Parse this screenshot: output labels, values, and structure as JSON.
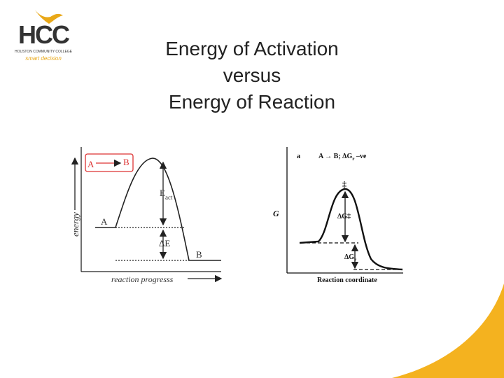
{
  "logo": {
    "letters": "HCC",
    "name": "HOUSTON COMMUNITY COLLEGE",
    "tagline": "smart decision"
  },
  "title": [
    "Energy of Activation",
    "versus",
    "Energy of Reaction"
  ],
  "left_diagram": {
    "box_start": "A",
    "box_end": "B",
    "reactant": "A",
    "product": "B",
    "activation": {
      "symbol": "E",
      "subscript": "act"
    },
    "reaction_energy": "ΔE",
    "y_axis": "energy",
    "x_axis": "reaction progresss"
  },
  "right_diagram": {
    "panel": "a",
    "equation": {
      "text": "A → B; ΔG",
      "subscript": "r",
      "suffix": " –ve"
    },
    "transition_state": "‡",
    "y_axis": "G",
    "activation": "ΔG‡",
    "reaction": {
      "symbol": "ΔG",
      "subscript": "r"
    },
    "x_axis": "Reaction coordinate"
  }
}
